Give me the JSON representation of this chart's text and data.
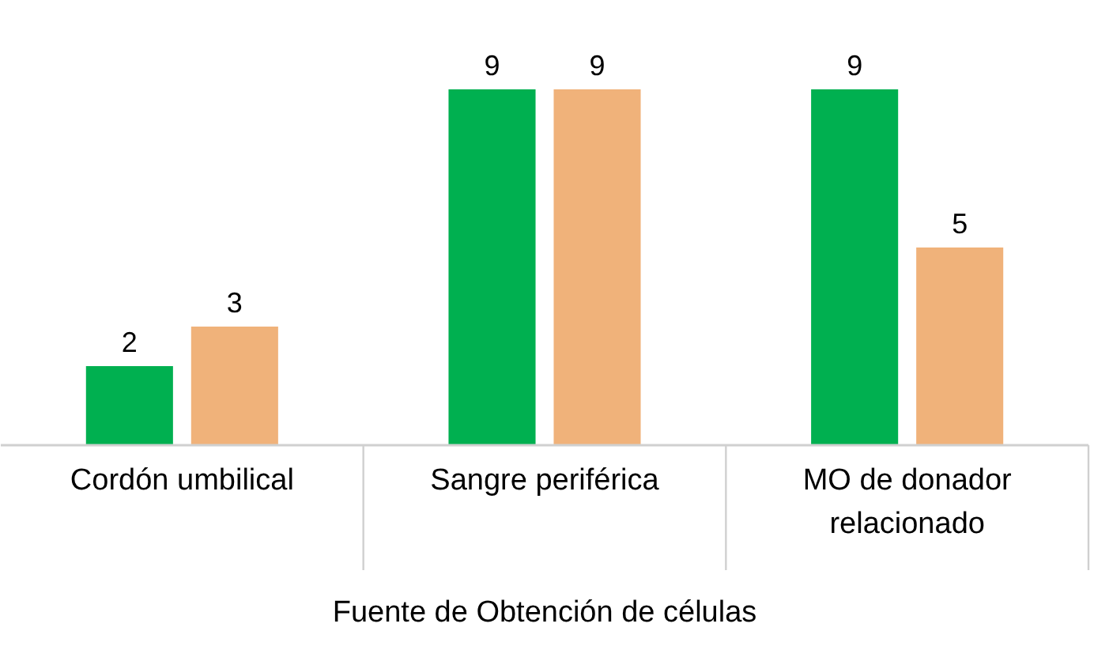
{
  "chart_data": {
    "type": "bar",
    "xlabel": "Fuente de Obtención de células",
    "categories": [
      "Cordón umbilical",
      "Sangre periférica",
      "MO de donador relacionado"
    ],
    "series": [
      {
        "color": "#00b050",
        "values": [
          2,
          9,
          9
        ]
      },
      {
        "color": "#f0b27a",
        "values": [
          3,
          9,
          5
        ]
      }
    ],
    "data_labels": true
  }
}
